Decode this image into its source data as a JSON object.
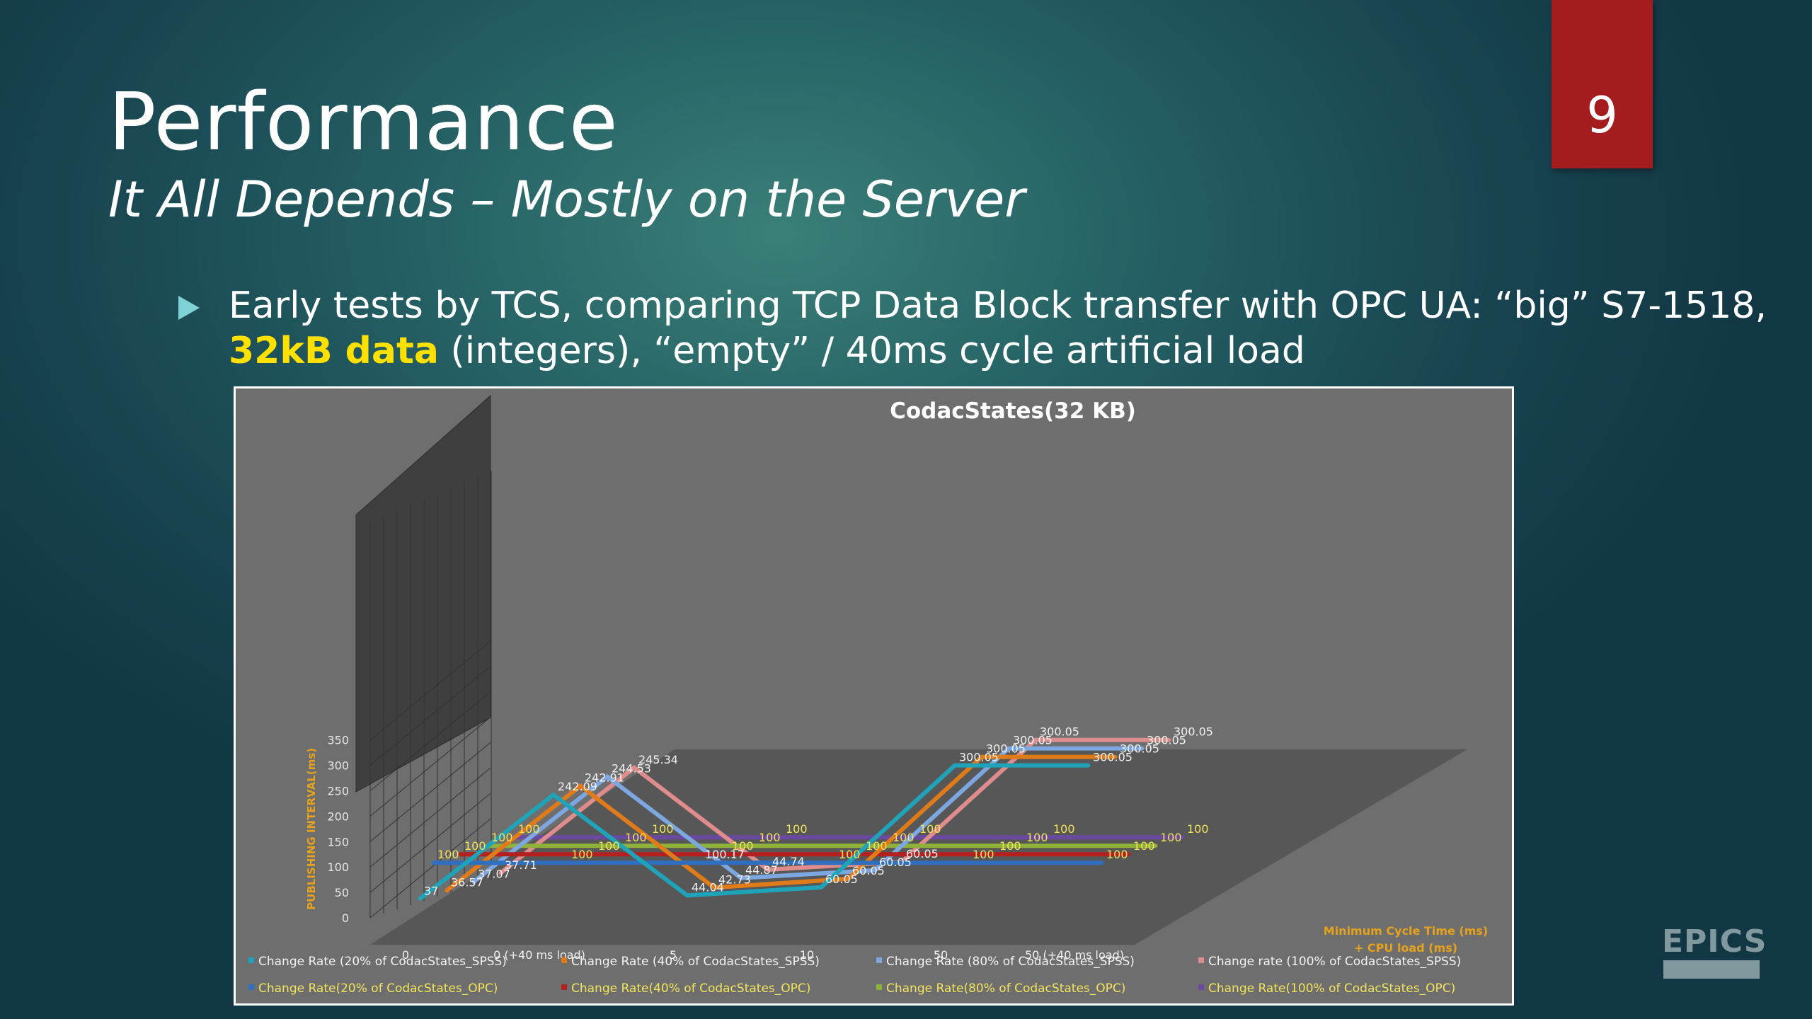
{
  "slide": {
    "title": "Performance",
    "subtitle": "It All Depends – Mostly on the Server",
    "page_number": "9",
    "bullet_part1": "Early tests by TCS, comparing TCP Data Block transfer with OPC UA: “big” S7-1518, ",
    "bullet_highlight": "32kB data",
    "bullet_part2": " (integers), “empty” / 40ms cycle artificial load",
    "logo_text": "EPICS"
  },
  "chart_data": {
    "type": "line",
    "title": "CodacStates(32 KB)",
    "ylabel": "PUBLISHING INTERVAL(ms)",
    "xlabel": "Minimum Cycle Time (ms) + CPU load (ms)",
    "categories": [
      "0",
      "0 (+40 ms load)",
      "5",
      "10",
      "50",
      "50 (+40 ms load)"
    ],
    "yticks": [
      "0",
      "50",
      "100",
      "150",
      "200",
      "250",
      "300",
      "350"
    ],
    "ylim": [
      0,
      350
    ],
    "series": [
      {
        "name": "Change Rate (20% of CodacStates_SPSS)",
        "color": "#1fa3b8",
        "values": [
          37,
          242.09,
          44.04,
          60.05,
          300.05,
          300.05
        ]
      },
      {
        "name": "Change Rate(20% of CodacStates_OPC)",
        "color": "#2f6fc0",
        "values": [
          100,
          100,
          100.17,
          100,
          100,
          100
        ]
      },
      {
        "name": "Change Rate (40% of CodacStates_SPSS)",
        "color": "#e07b1a",
        "values": [
          36.57,
          242.91,
          42.73,
          60.05,
          300.05,
          300.05
        ]
      },
      {
        "name": "Change Rate(40% of CodacStates_OPC)",
        "color": "#b3201f",
        "values": [
          100,
          100,
          100,
          100,
          100,
          100
        ]
      },
      {
        "name": "Change Rate (80% of CodacStates_SPSS)",
        "color": "#7da7e0",
        "values": [
          37.07,
          244.53,
          44.87,
          60.05,
          300.05,
          300.05
        ]
      },
      {
        "name": "Change Rate(80% of CodacStates_OPC)",
        "color": "#8fb33a",
        "values": [
          100,
          100,
          100,
          100,
          100,
          100
        ]
      },
      {
        "name": "Change rate (100% of CodacStates_SPSS)",
        "color": "#e08c8c",
        "values": [
          37.71,
          245.34,
          44.74,
          60.05,
          300.05,
          300.05
        ]
      },
      {
        "name": "Change Rate(100% of CodacStates_OPC)",
        "color": "#6a4aa0",
        "values": [
          100,
          100,
          100,
          100,
          100,
          100
        ]
      }
    ],
    "legend_position": "bottom",
    "grid": true
  }
}
